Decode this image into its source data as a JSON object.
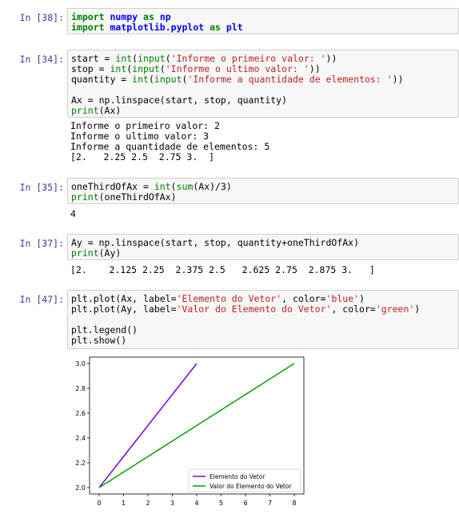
{
  "cells": [
    {
      "prompt": "In [38]:",
      "lines": [
        [
          {
            "t": "import",
            "c": "kw"
          },
          {
            "t": " ",
            "c": "plain"
          },
          {
            "t": "numpy",
            "c": "mod"
          },
          {
            "t": " ",
            "c": "plain"
          },
          {
            "t": "as",
            "c": "kw"
          },
          {
            "t": " ",
            "c": "plain"
          },
          {
            "t": "np",
            "c": "mod"
          }
        ],
        [
          {
            "t": "import",
            "c": "kw"
          },
          {
            "t": " ",
            "c": "plain"
          },
          {
            "t": "matplotlib.pyplot",
            "c": "mod"
          },
          {
            "t": " ",
            "c": "plain"
          },
          {
            "t": "as",
            "c": "kw"
          },
          {
            "t": " ",
            "c": "plain"
          },
          {
            "t": "plt",
            "c": "mod"
          }
        ]
      ]
    },
    {
      "prompt": "In [34]:",
      "lines": [
        [
          {
            "t": "start = ",
            "c": "plain"
          },
          {
            "t": "int",
            "c": "fn"
          },
          {
            "t": "(",
            "c": "plain"
          },
          {
            "t": "input",
            "c": "fn"
          },
          {
            "t": "(",
            "c": "plain"
          },
          {
            "t": "'Informe o primeiro valor: '",
            "c": "str"
          },
          {
            "t": "))",
            "c": "plain"
          }
        ],
        [
          {
            "t": "stop = ",
            "c": "plain"
          },
          {
            "t": "int",
            "c": "fn"
          },
          {
            "t": "(",
            "c": "plain"
          },
          {
            "t": "input",
            "c": "fn"
          },
          {
            "t": "(",
            "c": "plain"
          },
          {
            "t": "'Informe o ultimo valor: '",
            "c": "str"
          },
          {
            "t": "))",
            "c": "plain"
          }
        ],
        [
          {
            "t": "quantity = ",
            "c": "plain"
          },
          {
            "t": "int",
            "c": "fn"
          },
          {
            "t": "(",
            "c": "plain"
          },
          {
            "t": "input",
            "c": "fn"
          },
          {
            "t": "(",
            "c": "plain"
          },
          {
            "t": "'Informe a quantidade de elementos: '",
            "c": "str"
          },
          {
            "t": "))",
            "c": "plain"
          }
        ],
        [],
        [
          {
            "t": "Ax = np.linspace(start, stop, quantity)",
            "c": "plain"
          }
        ],
        [
          {
            "t": "print",
            "c": "fn"
          },
          {
            "t": "(Ax)",
            "c": "plain"
          }
        ]
      ],
      "output": "Informe o primeiro valor: 2\nInforme o ultimo valor: 3\nInforme a quantidade de elementos: 5\n[2.   2.25 2.5  2.75 3.  ]"
    },
    {
      "prompt": "In [35]:",
      "lines": [
        [
          {
            "t": "oneThirdOfAx = ",
            "c": "plain"
          },
          {
            "t": "int",
            "c": "fn"
          },
          {
            "t": "(",
            "c": "plain"
          },
          {
            "t": "sum",
            "c": "fn"
          },
          {
            "t": "(Ax)/3)",
            "c": "plain"
          }
        ],
        [
          {
            "t": "print",
            "c": "fn"
          },
          {
            "t": "(oneThirdOfAx)",
            "c": "plain"
          }
        ]
      ],
      "output": "4"
    },
    {
      "prompt": "In [37]:",
      "lines": [
        [
          {
            "t": "Ay = np.linspace(start, stop, quantity+oneThirdOfAx)",
            "c": "plain"
          }
        ],
        [
          {
            "t": "print",
            "c": "fn"
          },
          {
            "t": "(Ay)",
            "c": "plain"
          }
        ]
      ],
      "output": "[2.    2.125 2.25  2.375 2.5   2.625 2.75  2.875 3.   ]"
    },
    {
      "prompt": "In [47]:",
      "lines": [
        [
          {
            "t": "plt.plot(Ax, label=",
            "c": "plain"
          },
          {
            "t": "'Elemento do Vetor'",
            "c": "str"
          },
          {
            "t": ", color=",
            "c": "plain"
          },
          {
            "t": "'blue'",
            "c": "str"
          },
          {
            "t": ")",
            "c": "plain"
          }
        ],
        [
          {
            "t": "plt.plot(Ay, label=",
            "c": "plain"
          },
          {
            "t": "'Valor do Elemento do Vetor'",
            "c": "str"
          },
          {
            "t": ", color=",
            "c": "plain"
          },
          {
            "t": "'green'",
            "c": "str"
          },
          {
            "t": ")",
            "c": "plain"
          }
        ],
        [],
        [
          {
            "t": "plt.legend()",
            "c": "plain"
          }
        ],
        [
          {
            "t": "plt.show()",
            "c": "plain"
          }
        ]
      ]
    }
  ],
  "chart_data": {
    "type": "line",
    "xlim": [
      0,
      8
    ],
    "ylim": [
      2.0,
      3.0
    ],
    "xticks": [
      "0",
      "1",
      "2",
      "3",
      "4",
      "5",
      "6",
      "7",
      "8"
    ],
    "yticks": [
      "2.0",
      "2.2",
      "2.4",
      "2.6",
      "2.8",
      "3.0"
    ],
    "legend_position": "lower-right",
    "series": [
      {
        "name": "Elemento do Vetor",
        "color": "#7a00e6",
        "x": [
          0,
          1,
          2,
          3,
          4
        ],
        "y": [
          2.0,
          2.25,
          2.5,
          2.75,
          3.0
        ]
      },
      {
        "name": "Valor do Elemento do Vetor",
        "color": "#00a000",
        "x": [
          0,
          1,
          2,
          3,
          4,
          5,
          6,
          7,
          8
        ],
        "y": [
          2.0,
          2.125,
          2.25,
          2.375,
          2.5,
          2.625,
          2.75,
          2.875,
          3.0
        ]
      }
    ]
  }
}
